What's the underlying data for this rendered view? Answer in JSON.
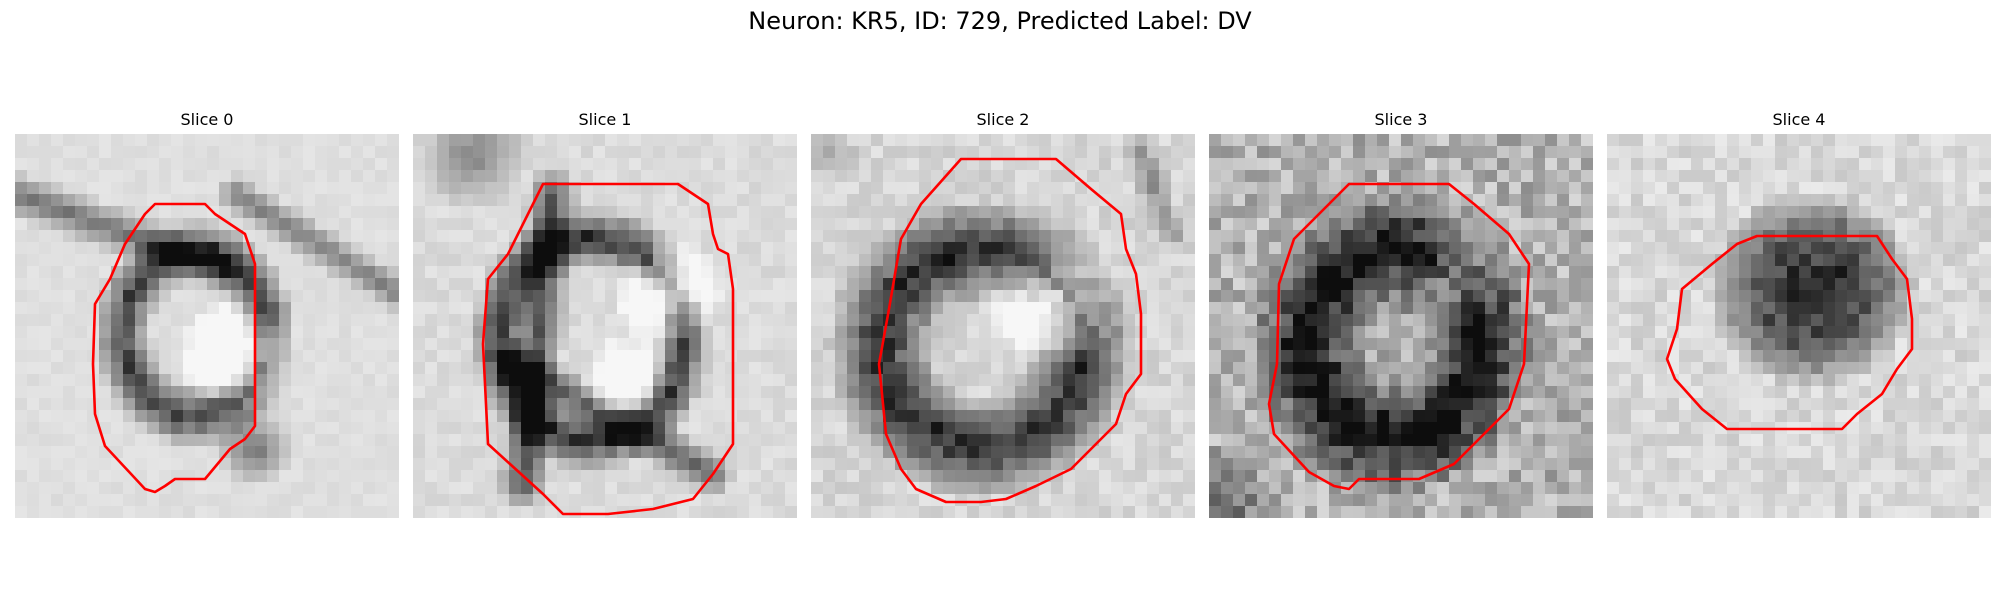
{
  "title": "Neuron: KR5, ID: 729, Predicted Label: DV",
  "contour_color": "#ff0000",
  "slices": [
    {
      "label": "Slice 0"
    },
    {
      "label": "Slice 1"
    },
    {
      "label": "Slice 2"
    },
    {
      "label": "Slice 3"
    },
    {
      "label": "Slice 4"
    }
  ]
}
